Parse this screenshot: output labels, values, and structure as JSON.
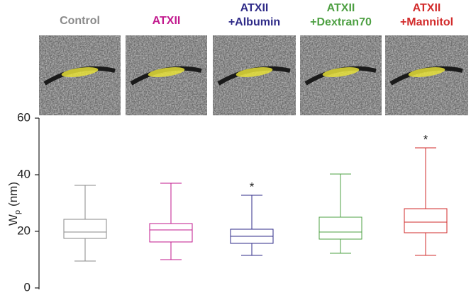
{
  "chart_data": {
    "type": "box",
    "categories": [
      [
        "Control"
      ],
      [
        "ATXII"
      ],
      [
        "ATXII",
        "+Albumin"
      ],
      [
        "ATXII",
        "+Dextran70"
      ],
      [
        "ATXII",
        "+Mannitol"
      ]
    ],
    "colors": [
      "#8a8a8a",
      "#c21a8e",
      "#2f2b88",
      "#4ea043",
      "#d22b2b"
    ],
    "whisker_low": [
      9.5,
      10,
      11.5,
      12.25,
      11.5
    ],
    "q1": [
      17.5,
      16.25,
      15.75,
      17.25,
      19.5
    ],
    "median": [
      19.75,
      20.5,
      18.25,
      19.75,
      23.25
    ],
    "q3": [
      24.25,
      22.75,
      20.75,
      25,
      28
    ],
    "whisker_high": [
      36.25,
      37,
      32.75,
      40.25,
      49.5
    ],
    "annotations": [
      null,
      null,
      "*",
      null,
      "*"
    ],
    "ylabel": [
      "W",
      "p",
      "(nm)"
    ],
    "ylim": [
      0,
      60
    ],
    "yticks": [
      0,
      20,
      40,
      60
    ]
  }
}
